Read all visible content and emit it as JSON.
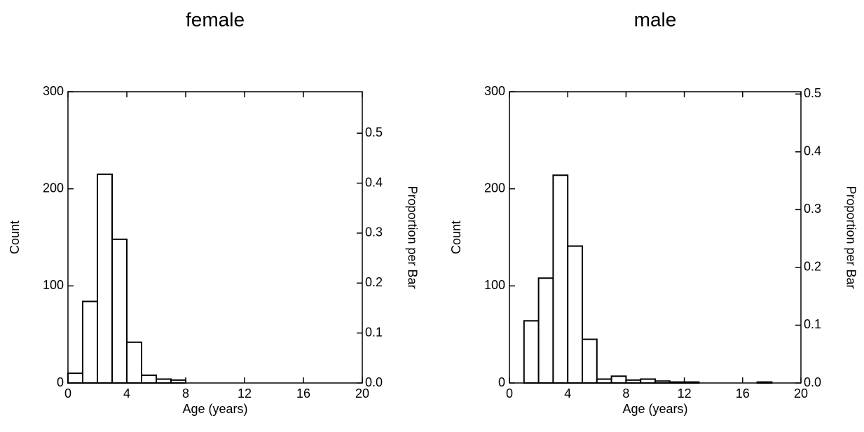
{
  "chart_data": [
    {
      "type": "histogram",
      "title": "female",
      "xlabel": "Age (years)",
      "ylabel": "Count",
      "y2label": "Proportion per Bar",
      "bins": [
        0,
        1,
        2,
        3,
        4,
        5,
        6,
        7,
        8,
        9,
        10,
        11,
        12,
        13,
        14,
        15,
        16,
        17,
        18,
        19,
        20
      ],
      "values": [
        10,
        84,
        215,
        148,
        42,
        8,
        4,
        3,
        0,
        0,
        0,
        0,
        0,
        0,
        0,
        0,
        0,
        0,
        0,
        0
      ],
      "color": "#ffffff",
      "edgecolor": "#000000",
      "xlim": [
        0,
        20
      ],
      "xticks": [
        0,
        4,
        8,
        12,
        16,
        20
      ],
      "ylim": [
        0,
        300
      ],
      "yticks": [
        0,
        100,
        200,
        300
      ],
      "y2lim": [
        0,
        0.583
      ],
      "y2ticks": [
        {
          "value": 0,
          "label": "0.0"
        },
        0.1,
        0.2,
        0.3,
        0.4,
        0.5
      ]
    },
    {
      "type": "histogram",
      "title": "male",
      "xlabel": "Age (years)",
      "ylabel": "Count",
      "y2label": "Proportion per Bar",
      "bins": [
        0,
        1,
        2,
        3,
        4,
        5,
        6,
        7,
        8,
        9,
        10,
        11,
        12,
        13,
        14,
        15,
        16,
        17,
        18,
        19,
        20
      ],
      "values": [
        0,
        64,
        108,
        214,
        141,
        45,
        4,
        7,
        3,
        4,
        2,
        1,
        1,
        0,
        0,
        0,
        0,
        1,
        0,
        0
      ],
      "color": "#ffffff",
      "edgecolor": "#000000",
      "xlim": [
        0,
        20
      ],
      "xticks": [
        0,
        4,
        8,
        12,
        16,
        20
      ],
      "ylim": [
        0,
        300
      ],
      "yticks": [
        0,
        100,
        200,
        300
      ],
      "y2lim": [
        0,
        0.504
      ],
      "y2ticks": [
        {
          "value": 0,
          "label": "0.0"
        },
        0.1,
        0.2,
        0.3,
        0.4,
        0.5
      ]
    }
  ]
}
